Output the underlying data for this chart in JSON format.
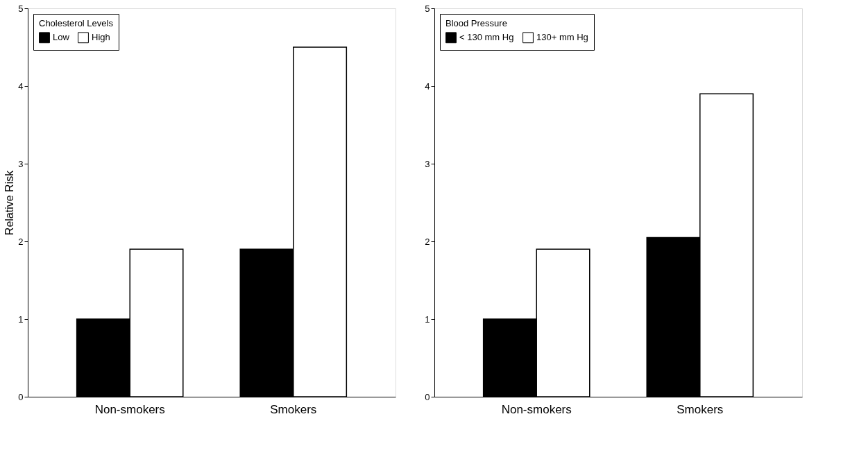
{
  "chart_data": [
    {
      "type": "bar",
      "ylabel": "Relative Risk",
      "legend_title": "Cholesterol Levels",
      "categories": [
        "Non-smokers",
        "Smokers"
      ],
      "series": [
        {
          "name": "Low",
          "color": "#000000",
          "values": [
            1.0,
            1.9
          ]
        },
        {
          "name": "High",
          "color": "#ffffff",
          "values": [
            1.9,
            4.5
          ]
        }
      ],
      "ylim": [
        0,
        5
      ],
      "yticks": [
        0,
        1,
        2,
        3,
        4,
        5
      ],
      "grid": false,
      "legend": "top left"
    },
    {
      "type": "bar",
      "legend_title": "Blood Pressure",
      "categories": [
        "Non-smokers",
        "Smokers"
      ],
      "series": [
        {
          "name": "< 130 mm Hg",
          "color": "#000000",
          "values": [
            1.0,
            2.05
          ]
        },
        {
          "name": "130+ mm Hg",
          "color": "#ffffff",
          "values": [
            1.9,
            3.9
          ]
        }
      ],
      "ylim": [
        0,
        5
      ],
      "yticks": [
        0,
        1,
        2,
        3,
        4,
        5
      ],
      "grid": false,
      "legend": "top left"
    }
  ]
}
